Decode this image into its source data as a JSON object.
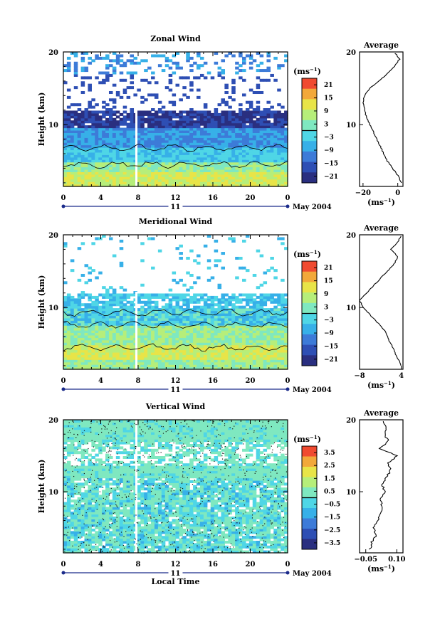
{
  "colors": {
    "scale": [
      "#2a2f80",
      "#2e4fb4",
      "#3d7bd8",
      "#37b0e8",
      "#4fd6e6",
      "#7fe8c0",
      "#b6ee7a",
      "#e8e448",
      "#f2a83a",
      "#f04a30"
    ]
  },
  "chart_data": [
    {
      "type": "heatmap",
      "title": "Zonal Wind",
      "ylabel": "Height (km)",
      "y_ticks": [
        "20",
        "10"
      ],
      "y_range_km": [
        1.5,
        20
      ],
      "x_ticks": [
        "0",
        "4",
        "8",
        "12",
        "16",
        "20",
        "0"
      ],
      "x_range_h": [
        0,
        24
      ],
      "day_label": "11",
      "date_label": "May 2004",
      "colorbar": {
        "unit": "(ms",
        "exp": "−1",
        "unit_close": ")",
        "ticks": [
          "21",
          "15",
          "9",
          "3",
          "−3",
          "−9",
          "−15",
          "−21"
        ],
        "range": [
          -24,
          24
        ]
      },
      "average_profile": {
        "title": "Average",
        "x_ticks": [
          "−20",
          "0"
        ],
        "x_unit": "(ms",
        "x_unit_exp": "−1",
        "x_unit_close": ")",
        "xlim": [
          -22,
          3
        ],
        "y_ticks": [
          "20",
          "10"
        ],
        "heights_km": [
          2,
          3,
          4,
          5,
          6,
          7,
          8,
          9,
          10,
          11,
          12,
          13,
          14,
          15,
          16,
          17,
          18,
          19,
          20
        ],
        "values": [
          2,
          0,
          -3,
          -6,
          -8,
          -10,
          -12,
          -14,
          -16,
          -18,
          -19,
          -20,
          -19,
          -16,
          -11,
          -6,
          -2,
          1,
          -2
        ]
      }
    },
    {
      "type": "heatmap",
      "title": "Meridional Wind",
      "ylabel": "Height (km)",
      "y_ticks": [
        "20",
        "10"
      ],
      "y_range_km": [
        1.5,
        20
      ],
      "x_ticks": [
        "0",
        "4",
        "8",
        "12",
        "16",
        "20",
        "0"
      ],
      "x_range_h": [
        0,
        24
      ],
      "day_label": "11",
      "date_label": "May 2004",
      "colorbar": {
        "unit": "(ms",
        "exp": "−1",
        "unit_close": ")",
        "ticks": [
          "21",
          "15",
          "9",
          "3",
          "−3",
          "−9",
          "−15",
          "−21"
        ],
        "range": [
          -24,
          24
        ]
      },
      "average_profile": {
        "title": "Average",
        "x_ticks": [
          "−8",
          "4"
        ],
        "x_unit": "(ms",
        "x_unit_exp": "−1",
        "x_unit_close": ")",
        "xlim": [
          -8,
          4.5
        ],
        "y_ticks": [
          "20",
          "10"
        ],
        "heights_km": [
          2,
          3,
          4,
          5,
          6,
          7,
          8,
          9,
          10,
          11,
          12,
          13,
          14,
          15,
          16,
          17,
          18,
          19,
          20
        ],
        "values": [
          4,
          3,
          2,
          1,
          0,
          -1,
          -3,
          -5,
          -7,
          -8,
          -6,
          -4,
          -2,
          0,
          2,
          3,
          1,
          3,
          4
        ]
      }
    },
    {
      "type": "heatmap",
      "title": "Vertical Wind",
      "ylabel": "Height (km)",
      "y_ticks": [
        "20",
        "10"
      ],
      "y_range_km": [
        1.5,
        20
      ],
      "x_ticks": [
        "0",
        "4",
        "8",
        "12",
        "16",
        "20",
        "0"
      ],
      "x_range_h": [
        0,
        24
      ],
      "xlabel": "Local Time",
      "day_label": "11",
      "date_label": "May 2004",
      "colorbar": {
        "unit": "(ms",
        "exp": "−1",
        "unit_close": ")",
        "ticks": [
          "3.5",
          "2.5",
          "1.5",
          "0.5",
          "−0.5",
          "−1.5",
          "−2.5",
          "−3.5"
        ],
        "range": [
          -4,
          4
        ]
      },
      "average_profile": {
        "title": "Average",
        "x_ticks": [
          "−0.05",
          "0.10"
        ],
        "x_unit": "(ms",
        "x_unit_exp": "−1",
        "x_unit_close": ")",
        "xlim": [
          -0.08,
          0.13
        ],
        "y_ticks": [
          "20",
          "10"
        ],
        "heights_km": [
          2,
          3,
          4,
          5,
          6,
          7,
          8,
          9,
          10,
          11,
          12,
          13,
          14,
          15,
          16,
          17,
          18,
          19,
          20
        ],
        "values": [
          -0.03,
          -0.02,
          0.0,
          -0.01,
          0.01,
          0.02,
          0.03,
          0.02,
          0.04,
          0.03,
          0.05,
          0.07,
          0.06,
          0.1,
          0.02,
          0.06,
          0.04,
          0.05,
          0.03
        ]
      }
    }
  ]
}
